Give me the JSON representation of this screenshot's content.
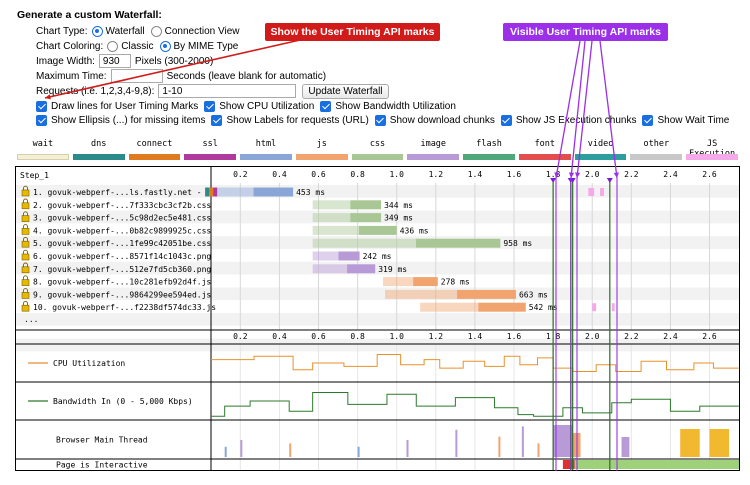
{
  "form": {
    "title": "Generate a custom Waterfall:",
    "chart_type_label": "Chart Type:",
    "chart_type_options": [
      "Waterfall",
      "Connection View"
    ],
    "chart_type_selected": "Waterfall",
    "chart_coloring_label": "Chart Coloring:",
    "chart_coloring_options": [
      "Classic",
      "By MIME Type"
    ],
    "chart_coloring_selected": "By MIME Type",
    "image_width_label": "Image Width:",
    "image_width_value": "930",
    "image_width_hint": "Pixels (300-2000)",
    "max_time_label": "Maximum Time:",
    "max_time_value": "",
    "max_time_hint": "Seconds (leave blank for automatic)",
    "requests_label": "Requests (i.e. 1,2,3,4-9,8):",
    "requests_value": "1-10",
    "update_button": "Update Waterfall",
    "checkboxes": [
      {
        "label": "Draw lines for User Timing Marks",
        "checked": true
      },
      {
        "label": "Show CPU Utilization",
        "checked": true
      },
      {
        "label": "Show Bandwidth Utilization",
        "checked": true
      },
      {
        "label": "Show Ellipsis (...) for missing items",
        "checked": true
      },
      {
        "label": "Show Labels for requests (URL)",
        "checked": true
      },
      {
        "label": "Show download chunks",
        "checked": true
      },
      {
        "label": "Show JS Execution chunks",
        "checked": true
      },
      {
        "label": "Show Wait Time",
        "checked": true
      }
    ]
  },
  "callouts": {
    "red": "Show the User Timing API marks",
    "purple": "Visible User Timing API marks"
  },
  "legend": [
    {
      "label": "wait",
      "color": "#f4f0d8"
    },
    {
      "label": "dns",
      "color": "#2b8b8b"
    },
    {
      "label": "connect",
      "color": "#e07a1f"
    },
    {
      "label": "ssl",
      "color": "#b0399e"
    },
    {
      "label": "html",
      "color": "#8aa6d6"
    },
    {
      "label": "js",
      "color": "#f2a46f"
    },
    {
      "label": "css",
      "color": "#a8c795"
    },
    {
      "label": "image",
      "color": "#b79ad6"
    },
    {
      "label": "flash",
      "color": "#4fa87a"
    },
    {
      "label": "font",
      "color": "#e24d4d"
    },
    {
      "label": "video",
      "color": "#2c9e9e"
    },
    {
      "label": "other",
      "color": "#c8c8c8"
    },
    {
      "label": "JS Execution",
      "color": "#f5a8ea"
    }
  ],
  "waterfall": {
    "step_label": "Step_1",
    "ellipsis": "...",
    "requests": [
      {
        "label": "1. govuk-webperf-...ls.fastly.net - /",
        "start": 0.02,
        "end": 0.47,
        "ms": "453 ms",
        "type": "html",
        "secure": true
      },
      {
        "label": "2. govuk-webperf-...7f333cbc3cf2b.css",
        "start": 0.57,
        "end": 0.92,
        "ms": "344 ms",
        "type": "css",
        "secure": true
      },
      {
        "label": "3. govuk-webperf-...5c98d2ec5e481.css",
        "start": 0.57,
        "end": 0.92,
        "ms": "349 ms",
        "type": "css",
        "secure": true
      },
      {
        "label": "4. govuk-webperf-...0b82c9899925c.css",
        "start": 0.57,
        "end": 1.0,
        "ms": "436 ms",
        "type": "css",
        "secure": true
      },
      {
        "label": "5. govuk-webperf-...1fe99c42051be.css",
        "start": 0.57,
        "end": 1.53,
        "ms": "958 ms",
        "type": "css",
        "secure": true
      },
      {
        "label": "6. govuk-webperf-...8571f14c1043c.png",
        "start": 0.57,
        "end": 0.81,
        "ms": "242 ms",
        "type": "image",
        "secure": true
      },
      {
        "label": "7. govuk-webperf-...512e7fd5cb360.png",
        "start": 0.57,
        "end": 0.89,
        "ms": "319 ms",
        "type": "image",
        "secure": true
      },
      {
        "label": "8. govuk-webperf-...10c281efb92d4f.js",
        "start": 0.93,
        "end": 1.21,
        "ms": "278 ms",
        "type": "js",
        "secure": true
      },
      {
        "label": "9. govuk-webperf-...9864299ee594ed.js",
        "start": 0.94,
        "end": 1.61,
        "ms": "663 ms",
        "type": "js",
        "secure": true
      },
      {
        "label": "10. govuk-webperf-...f2238df574dc33.js",
        "start": 1.12,
        "end": 1.66,
        "ms": "542 ms",
        "type": "js",
        "secure": true
      }
    ],
    "axis_ticks": [
      "0.2",
      "0.4",
      "0.6",
      "0.8",
      "1.0",
      "1.2",
      "1.4",
      "1.6",
      "1.8",
      "2.0",
      "2.2",
      "2.4",
      "2.6"
    ],
    "user_timing_marks": [
      1.8,
      1.89,
      1.9,
      2.09
    ],
    "metrics": [
      {
        "label": "CPU Utilization",
        "color": "#e8922a"
      },
      {
        "label": "Bandwidth In (0 - 5,000 Kbps)",
        "color": "#2b7a2b"
      },
      {
        "label": "Browser Main Thread",
        "color": ""
      },
      {
        "label": "Page is Interactive",
        "color": ""
      }
    ]
  }
}
